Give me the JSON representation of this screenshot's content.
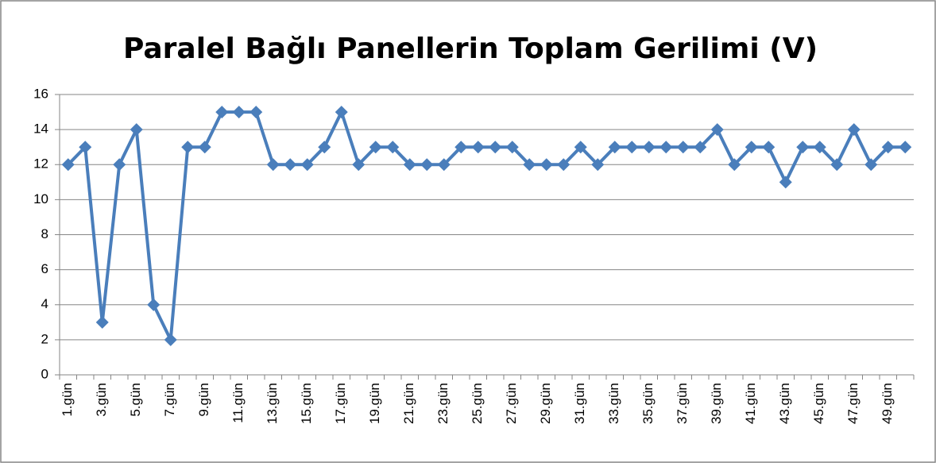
{
  "chart_data": {
    "type": "line",
    "title": "Paralel Bağlı Panellerin Toplam Gerilimi (V)",
    "categories": [
      "1.gün",
      null,
      "3.gün",
      null,
      "5.gün",
      null,
      "7.gün",
      null,
      "9.gün",
      null,
      "11.gün",
      null,
      "13.gün",
      null,
      "15.gün",
      null,
      "17.gün",
      null,
      "19.gün",
      null,
      "21.gün",
      null,
      "23.gün",
      null,
      "25.gün",
      null,
      "27.gün",
      null,
      "29.gün",
      null,
      "31.gün",
      null,
      "33.gün",
      null,
      "35.gün",
      null,
      "37.gün",
      null,
      "39.gün",
      null,
      "41.gün",
      null,
      "43.gün",
      null,
      "45.gün",
      null,
      "47.gün",
      null,
      "49.gün",
      null
    ],
    "values": [
      12,
      13,
      3,
      12,
      14,
      4,
      2,
      13,
      13,
      15,
      15,
      15,
      12,
      12,
      12,
      13,
      15,
      12,
      13,
      13,
      12,
      12,
      12,
      13,
      13,
      13,
      13,
      12,
      12,
      12,
      13,
      12,
      13,
      13,
      13,
      13,
      13,
      13,
      14,
      12,
      13,
      13,
      11,
      13,
      13,
      12,
      14,
      12,
      13,
      13
    ],
    "color": "#4a7ebb",
    "ylim": [
      0,
      16
    ],
    "yticks": [
      0,
      2,
      4,
      6,
      8,
      10,
      12,
      14,
      16
    ],
    "grid": true
  }
}
